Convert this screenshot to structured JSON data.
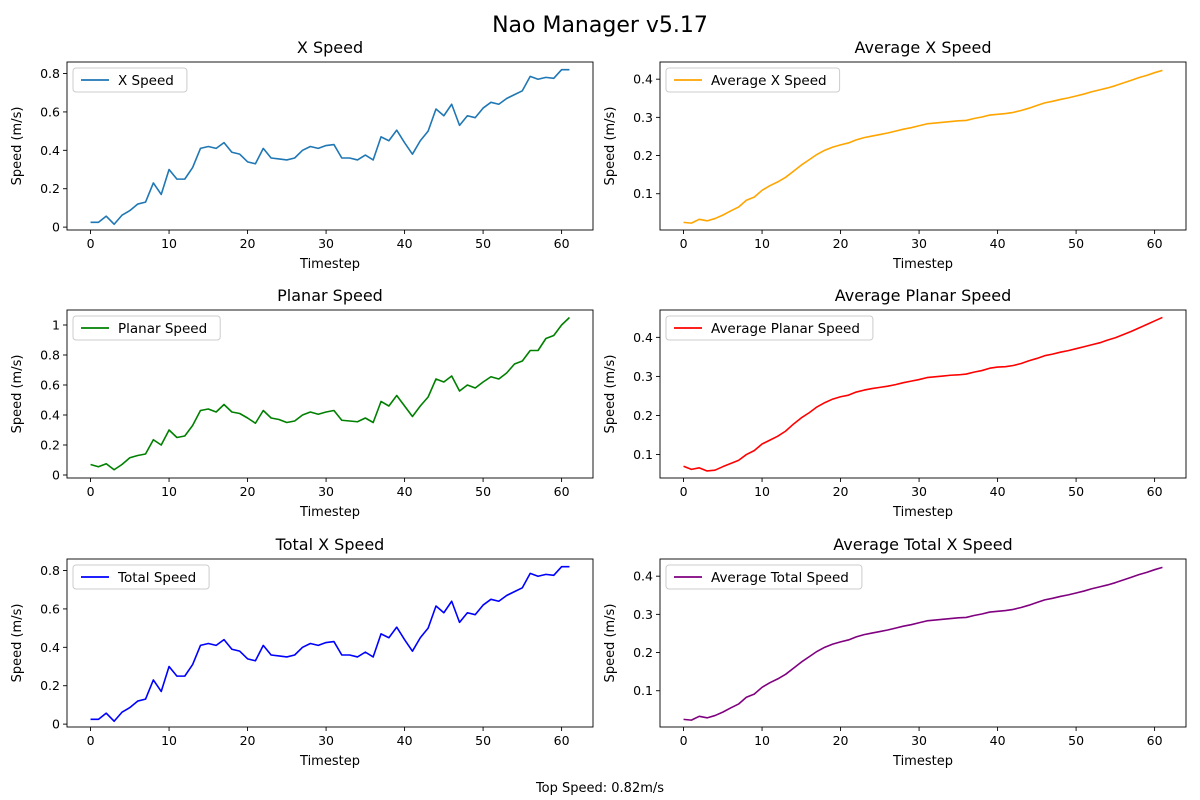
{
  "figure": {
    "suptitle": "Nao Manager v5.17",
    "footer": "Top Speed: 0.82m/s"
  },
  "chart_data": [
    {
      "type": "line",
      "title": "X Speed",
      "xlabel": "Timestep",
      "ylabel": "Speed (m/s)",
      "xlim": [
        -3,
        64
      ],
      "ylim": [
        -0.015,
        0.86
      ],
      "xticks": [
        0,
        10,
        20,
        30,
        40,
        50,
        60
      ],
      "yticks": [
        0.0,
        0.2,
        0.4,
        0.6,
        0.8
      ],
      "legend_loc": "upper-left",
      "series": [
        {
          "name": "X Speed",
          "color": "#1f77b4",
          "values": [
            0.025,
            0.025,
            0.057,
            0.015,
            0.062,
            0.086,
            0.12,
            0.13,
            0.23,
            0.17,
            0.3,
            0.25,
            0.25,
            0.31,
            0.41,
            0.42,
            0.41,
            0.44,
            0.39,
            0.38,
            0.34,
            0.33,
            0.41,
            0.36,
            0.355,
            0.35,
            0.36,
            0.4,
            0.42,
            0.41,
            0.425,
            0.43,
            0.36,
            0.36,
            0.35,
            0.375,
            0.35,
            0.47,
            0.45,
            0.505,
            0.44,
            0.38,
            0.45,
            0.5,
            0.615,
            0.58,
            0.64,
            0.53,
            0.58,
            0.57,
            0.62,
            0.65,
            0.64,
            0.67,
            0.69,
            0.71,
            0.785,
            0.77,
            0.78,
            0.775,
            0.82,
            0.82
          ]
        }
      ]
    },
    {
      "type": "line",
      "title": "Average X Speed",
      "xlabel": "Timestep",
      "ylabel": "Speed (m/s)",
      "xlim": [
        -3,
        64
      ],
      "ylim": [
        0.005,
        0.445
      ],
      "xticks": [
        0,
        10,
        20,
        30,
        40,
        50,
        60
      ],
      "yticks": [
        0.1,
        0.2,
        0.3,
        0.4
      ],
      "legend_loc": "upper-left",
      "series": [
        {
          "name": "Average X Speed",
          "color": "#ffa500",
          "values": [
            0.025,
            0.023,
            0.033,
            0.029,
            0.035,
            0.044,
            0.055,
            0.065,
            0.083,
            0.091,
            0.109,
            0.121,
            0.131,
            0.143,
            0.159,
            0.175,
            0.189,
            0.203,
            0.214,
            0.222,
            0.228,
            0.233,
            0.241,
            0.247,
            0.251,
            0.255,
            0.259,
            0.264,
            0.269,
            0.273,
            0.278,
            0.283,
            0.285,
            0.287,
            0.289,
            0.291,
            0.292,
            0.297,
            0.301,
            0.306,
            0.308,
            0.31,
            0.313,
            0.318,
            0.324,
            0.331,
            0.338,
            0.342,
            0.347,
            0.351,
            0.356,
            0.361,
            0.367,
            0.372,
            0.377,
            0.383,
            0.39,
            0.397,
            0.404,
            0.41,
            0.417,
            0.423
          ]
        }
      ]
    },
    {
      "type": "line",
      "title": "Planar Speed",
      "xlabel": "Timestep",
      "ylabel": "Speed (m/s)",
      "xlim": [
        -3,
        64
      ],
      "ylim": [
        -0.02,
        1.1
      ],
      "xticks": [
        0,
        10,
        20,
        30,
        40,
        50,
        60
      ],
      "yticks": [
        0.0,
        0.2,
        0.4,
        0.6,
        0.8,
        1.0
      ],
      "legend_loc": "upper-left",
      "series": [
        {
          "name": "Planar Speed",
          "color": "#008000",
          "values": [
            0.07,
            0.055,
            0.075,
            0.035,
            0.07,
            0.115,
            0.13,
            0.14,
            0.235,
            0.2,
            0.3,
            0.25,
            0.26,
            0.33,
            0.43,
            0.44,
            0.42,
            0.47,
            0.42,
            0.41,
            0.38,
            0.345,
            0.43,
            0.38,
            0.37,
            0.35,
            0.36,
            0.4,
            0.42,
            0.405,
            0.42,
            0.43,
            0.365,
            0.36,
            0.355,
            0.38,
            0.35,
            0.49,
            0.46,
            0.53,
            0.46,
            0.39,
            0.46,
            0.52,
            0.64,
            0.62,
            0.66,
            0.56,
            0.6,
            0.58,
            0.62,
            0.655,
            0.64,
            0.68,
            0.74,
            0.76,
            0.83,
            0.83,
            0.91,
            0.93,
            1.0,
            1.05
          ]
        }
      ]
    },
    {
      "type": "line",
      "title": "Average Planar Speed",
      "xlabel": "Timestep",
      "ylabel": "Speed (m/s)",
      "xlim": [
        -3,
        64
      ],
      "ylim": [
        0.04,
        0.47
      ],
      "xticks": [
        0,
        10,
        20,
        30,
        40,
        50,
        60
      ],
      "yticks": [
        0.1,
        0.2,
        0.3,
        0.4
      ],
      "legend_loc": "upper-left",
      "series": [
        {
          "name": "Average Planar Speed",
          "color": "#ff0000",
          "values": [
            0.07,
            0.062,
            0.066,
            0.058,
            0.06,
            0.069,
            0.077,
            0.085,
            0.1,
            0.11,
            0.127,
            0.137,
            0.147,
            0.16,
            0.178,
            0.194,
            0.207,
            0.222,
            0.233,
            0.242,
            0.248,
            0.252,
            0.26,
            0.265,
            0.269,
            0.272,
            0.275,
            0.279,
            0.284,
            0.288,
            0.292,
            0.297,
            0.299,
            0.301,
            0.303,
            0.304,
            0.306,
            0.311,
            0.315,
            0.321,
            0.324,
            0.325,
            0.328,
            0.333,
            0.34,
            0.346,
            0.353,
            0.357,
            0.362,
            0.366,
            0.371,
            0.376,
            0.381,
            0.386,
            0.393,
            0.399,
            0.407,
            0.415,
            0.424,
            0.433,
            0.442,
            0.451
          ]
        }
      ]
    },
    {
      "type": "line",
      "title": "Total X Speed",
      "xlabel": "Timestep",
      "ylabel": "Speed (m/s)",
      "xlim": [
        -3,
        64
      ],
      "ylim": [
        -0.015,
        0.86
      ],
      "xticks": [
        0,
        10,
        20,
        30,
        40,
        50,
        60
      ],
      "yticks": [
        0.0,
        0.2,
        0.4,
        0.6,
        0.8
      ],
      "legend_loc": "upper-left",
      "series": [
        {
          "name": "Total Speed",
          "color": "#0000ff",
          "values": [
            0.025,
            0.025,
            0.057,
            0.015,
            0.062,
            0.086,
            0.12,
            0.13,
            0.23,
            0.17,
            0.3,
            0.25,
            0.25,
            0.31,
            0.41,
            0.42,
            0.41,
            0.44,
            0.39,
            0.38,
            0.34,
            0.33,
            0.41,
            0.36,
            0.355,
            0.35,
            0.36,
            0.4,
            0.42,
            0.41,
            0.425,
            0.43,
            0.36,
            0.36,
            0.35,
            0.375,
            0.35,
            0.47,
            0.45,
            0.505,
            0.44,
            0.38,
            0.45,
            0.5,
            0.615,
            0.58,
            0.64,
            0.53,
            0.58,
            0.57,
            0.62,
            0.65,
            0.64,
            0.67,
            0.69,
            0.71,
            0.785,
            0.77,
            0.78,
            0.775,
            0.82,
            0.82
          ]
        }
      ]
    },
    {
      "type": "line",
      "title": "Average Total X Speed",
      "xlabel": "Timestep",
      "ylabel": "Speed (m/s)",
      "xlim": [
        -3,
        64
      ],
      "ylim": [
        0.005,
        0.445
      ],
      "xticks": [
        0,
        10,
        20,
        30,
        40,
        50,
        60
      ],
      "yticks": [
        0.1,
        0.2,
        0.3,
        0.4
      ],
      "legend_loc": "upper-left",
      "series": [
        {
          "name": "Average Total Speed",
          "color": "#800080",
          "values": [
            0.025,
            0.023,
            0.033,
            0.029,
            0.035,
            0.044,
            0.055,
            0.065,
            0.083,
            0.091,
            0.109,
            0.121,
            0.131,
            0.143,
            0.159,
            0.175,
            0.189,
            0.203,
            0.214,
            0.222,
            0.228,
            0.233,
            0.241,
            0.247,
            0.251,
            0.255,
            0.259,
            0.264,
            0.269,
            0.273,
            0.278,
            0.283,
            0.285,
            0.287,
            0.289,
            0.291,
            0.292,
            0.297,
            0.301,
            0.306,
            0.308,
            0.31,
            0.313,
            0.318,
            0.324,
            0.331,
            0.338,
            0.342,
            0.347,
            0.351,
            0.356,
            0.361,
            0.367,
            0.372,
            0.377,
            0.383,
            0.39,
            0.397,
            0.404,
            0.41,
            0.417,
            0.423
          ]
        }
      ]
    }
  ]
}
